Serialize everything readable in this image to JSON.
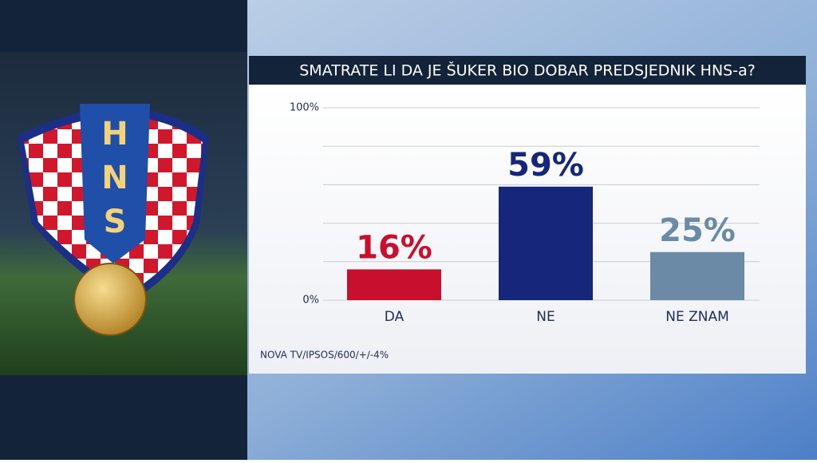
{
  "logo": {
    "letters": [
      "H",
      "N",
      "S"
    ]
  },
  "chart_data": {
    "type": "bar",
    "title": "SMATRATE LI DA JE ŠUKER BIO DOBAR PREDSJEDNIK HNS-a?",
    "categories": [
      "DA",
      "NE",
      "NE ZNAM"
    ],
    "values": [
      16,
      59,
      25
    ],
    "value_labels": [
      "16%",
      "59%",
      "25%"
    ],
    "colors": [
      "#c8102e",
      "#16267a",
      "#6b8aa6"
    ],
    "ylim": [
      0,
      100
    ],
    "yticks": [
      {
        "value": 0,
        "label": "0%"
      },
      {
        "value": 20,
        "label": null
      },
      {
        "value": 40,
        "label": null
      },
      {
        "value": 60,
        "label": null
      },
      {
        "value": 80,
        "label": null
      },
      {
        "value": 100,
        "label": "100%"
      }
    ],
    "grid": true,
    "source": "NOVA TV/IPSOS/600/+/-4%"
  }
}
